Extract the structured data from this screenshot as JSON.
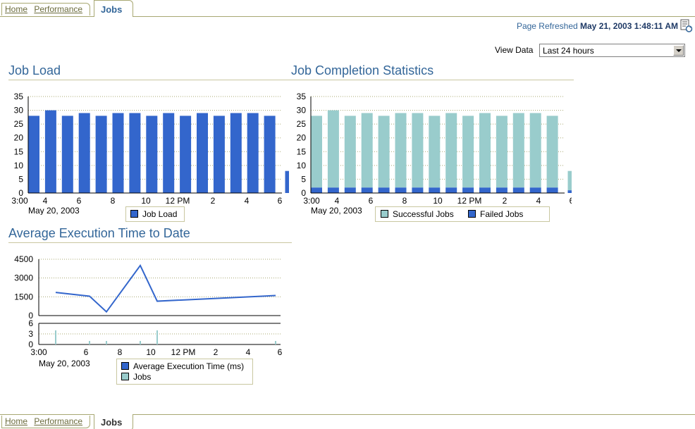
{
  "tabs": {
    "home": "Home",
    "performance": "Performance",
    "active": "Jobs"
  },
  "refresh": {
    "label": "Page Refreshed",
    "timestamp": "May 21, 2003 1:48:11 AM"
  },
  "view_data": {
    "label": "View Data",
    "selected": "Last 24 hours"
  },
  "sections": {
    "job_load": "Job Load",
    "completion": "Job Completion Statistics",
    "avg_exec": "Average Execution Time to Date"
  },
  "colors": {
    "blue": "#3366cc",
    "teal": "#99cccc",
    "title": "#336699",
    "grid": "#a8a872"
  },
  "chart_data": [
    {
      "type": "bar",
      "title": "Job Load",
      "x_ticks": [
        "3:00",
        "4",
        "6",
        "8",
        "10",
        "12 PM",
        "2",
        "4",
        "6"
      ],
      "date_label": "May 20, 2003",
      "ylim": [
        0,
        35
      ],
      "y_ticks": [
        0,
        5,
        10,
        15,
        20,
        25,
        30,
        35
      ],
      "series": [
        {
          "name": "Job Load",
          "color": "#3366cc",
          "values": [
            28,
            30,
            28,
            29,
            28,
            29,
            29,
            28,
            29,
            28,
            29,
            28,
            29,
            29,
            28,
            8
          ]
        }
      ],
      "grid": true,
      "legend": "bottom"
    },
    {
      "type": "bar",
      "title": "Job Completion Statistics",
      "stacked": true,
      "x_ticks": [
        "3:00",
        "4",
        "6",
        "8",
        "10",
        "12 PM",
        "2",
        "4",
        "6"
      ],
      "date_label": "May 20, 2003",
      "ylim": [
        0,
        35
      ],
      "y_ticks": [
        0,
        5,
        10,
        15,
        20,
        25,
        30,
        35
      ],
      "series": [
        {
          "name": "Failed Jobs",
          "color": "#3366cc",
          "values": [
            2,
            2,
            2,
            2,
            2,
            2,
            2,
            2,
            2,
            2,
            2,
            2,
            2,
            2,
            2,
            1
          ]
        },
        {
          "name": "Successful Jobs",
          "color": "#99cccc",
          "values": [
            26,
            28,
            26,
            27,
            26,
            27,
            27,
            26,
            27,
            26,
            27,
            26,
            27,
            27,
            26,
            7
          ]
        }
      ],
      "grid": true,
      "legend": "bottom"
    },
    {
      "type": "line",
      "title": "Average Execution Time to Date",
      "x_ticks": [
        "3:00",
        "6",
        "8",
        "10",
        "12 PM",
        "2",
        "4",
        "6"
      ],
      "date_label": "May 20, 2003",
      "upper": {
        "name": "Average Execution Time (ms)",
        "color": "#3366cc",
        "ylim": [
          0,
          4500
        ],
        "y_ticks": [
          0,
          1500,
          3000,
          4500
        ],
        "x": [
          4,
          6,
          7,
          9,
          10,
          17
        ],
        "y": [
          1850,
          1550,
          300,
          4000,
          1150,
          1600
        ]
      },
      "lower": {
        "name": "Jobs",
        "color": "#99cccc",
        "ylim": [
          0,
          6
        ],
        "y_ticks": [
          0,
          3,
          6
        ],
        "x": [
          4,
          6,
          7,
          9,
          10,
          17
        ],
        "y": [
          4,
          1,
          1,
          1,
          4,
          1
        ]
      },
      "grid": true,
      "legend": "bottom"
    }
  ]
}
